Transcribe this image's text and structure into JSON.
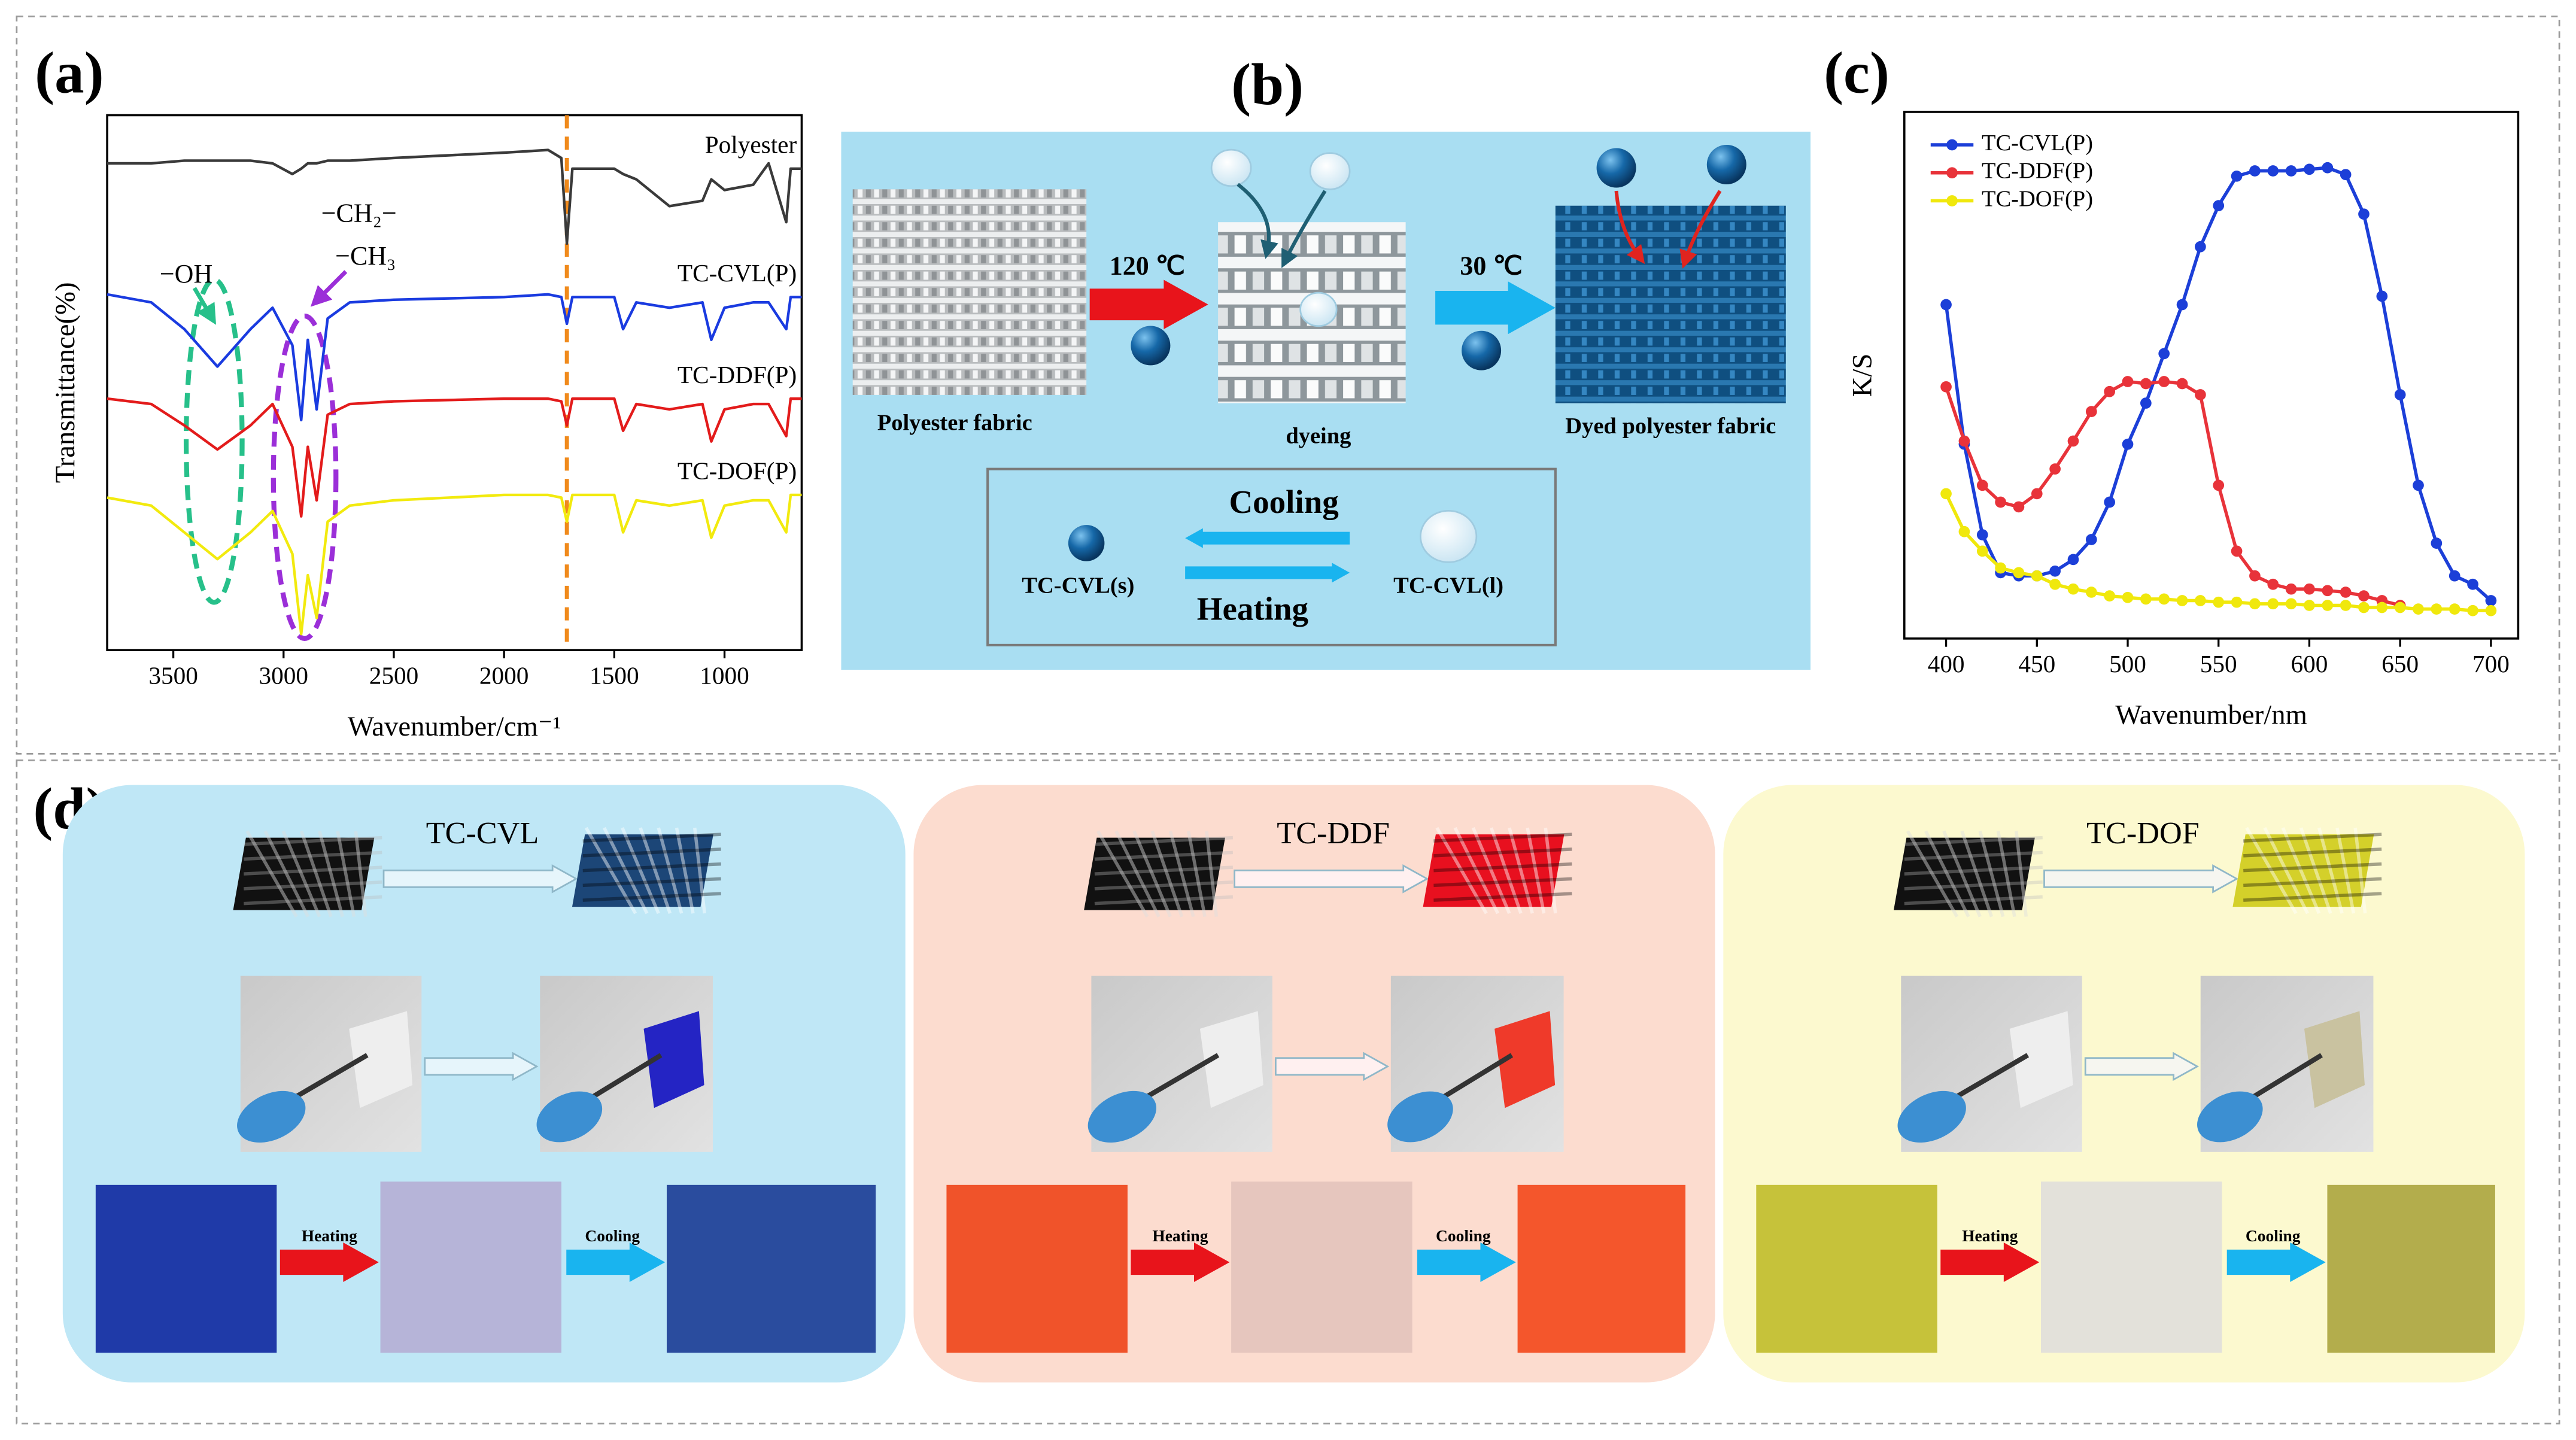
{
  "panel_labels": [
    "(a)",
    "(b)",
    "(c)",
    "(d)"
  ],
  "chart_data": [
    {
      "type": "line",
      "xlabel": "Wavenumber/cm⁻¹",
      "ylabel": "Transmittance(%)",
      "x": [
        3800,
        3600,
        3450,
        3300,
        3150,
        3050,
        2960,
        2920,
        2890,
        2850,
        2800,
        2700,
        2500,
        2000,
        1800,
        1740,
        1715,
        1690,
        1500,
        1460,
        1400,
        1250,
        1100,
        1060,
        1000,
        870,
        800,
        720,
        700,
        650
      ],
      "series": [
        {
          "name": "Polyester",
          "color": "#3a3a3a",
          "values": [
            91,
            91,
            91.5,
            91.5,
            91.5,
            91,
            89,
            90,
            91,
            91,
            91.5,
            91.5,
            92,
            93,
            93.5,
            92,
            76,
            90,
            90,
            89,
            88,
            83,
            84,
            88,
            86,
            87,
            91,
            80,
            90,
            90
          ]
        },
        {
          "name": "TC-CVL(P)",
          "color": "#1a3be0",
          "values": [
            66.5,
            65,
            60,
            53,
            60,
            64,
            57,
            43,
            58,
            45,
            62,
            65,
            65.5,
            66,
            66.5,
            66,
            61,
            66,
            66,
            60,
            65,
            64,
            65,
            58,
            64,
            65,
            65,
            60,
            66,
            66
          ]
        },
        {
          "name": "TC-DDF(P)",
          "color": "#e31b1b",
          "values": [
            47,
            46,
            42,
            37.5,
            42,
            46,
            38,
            25,
            38,
            28,
            44,
            46,
            46.5,
            47,
            47,
            46.5,
            42,
            47,
            47,
            41,
            46,
            45,
            46,
            39,
            45,
            46,
            46,
            40,
            47,
            47
          ]
        },
        {
          "name": "TC-DOF(P)",
          "color": "#f2ea0e",
          "values": [
            28.5,
            27,
            22,
            17,
            22,
            26,
            18,
            3,
            14,
            6,
            24,
            27,
            28,
            29,
            29,
            28.5,
            24,
            29,
            29,
            22,
            28,
            27,
            28,
            21,
            27,
            28,
            28,
            22,
            29,
            29
          ]
        }
      ],
      "xlim": [
        3800,
        650
      ],
      "xticks": [
        3500,
        3000,
        2500,
        2000,
        1500,
        1000
      ],
      "ylim": [
        0,
        100
      ],
      "reference_x": 1715,
      "reference_color": "#f08a1c",
      "legend": "inline",
      "annotations": [
        "−OH",
        "−CH₂−",
        "−CH₃"
      ]
    },
    {
      "type": "line",
      "xlabel": "Wavenumber/nm",
      "ylabel": "K/S",
      "x": [
        400,
        410,
        420,
        430,
        440,
        450,
        460,
        470,
        480,
        490,
        500,
        510,
        520,
        530,
        540,
        550,
        560,
        570,
        580,
        590,
        600,
        610,
        620,
        630,
        640,
        650,
        660,
        670,
        680,
        690,
        700
      ],
      "series": [
        {
          "name": "TC-CVL(P)",
          "color": "#1c3fd8",
          "values": [
            63.4,
            36.9,
            19.7,
            12.5,
            11.9,
            11.9,
            12.8,
            15,
            18.8,
            25.9,
            36.9,
            44.7,
            54.1,
            63.4,
            74.4,
            82.2,
            87.8,
            88.8,
            88.8,
            88.8,
            89.1,
            89.4,
            88.1,
            80.6,
            65,
            46.3,
            29.1,
            18.1,
            11.9,
            10.3,
            7.2
          ]
        },
        {
          "name": "TC-DDF(P)",
          "color": "#e8333a",
          "values": [
            47.8,
            37.5,
            29.1,
            25.9,
            25,
            27.5,
            32.2,
            37.5,
            43.1,
            46.9,
            48.8,
            48.4,
            48.8,
            48.4,
            46.3,
            29.1,
            16.6,
            11.9,
            10.3,
            9.4,
            9.4,
            9.1,
            8.8,
            8.1,
            7.2,
            6.3,
            null,
            null,
            null,
            null,
            null
          ]
        },
        {
          "name": "TC-DOF(P)",
          "color": "#f0e80c",
          "values": [
            27.5,
            20.3,
            16.6,
            13.4,
            12.5,
            11.9,
            10.3,
            9.4,
            8.8,
            8.1,
            7.8,
            7.5,
            7.5,
            7.2,
            7.2,
            6.9,
            6.9,
            6.6,
            6.6,
            6.6,
            6.3,
            6.3,
            6.3,
            5.9,
            5.9,
            5.9,
            5.6,
            5.6,
            5.6,
            5.3,
            5.3
          ]
        }
      ],
      "xlim": [
        377,
        715
      ],
      "xticks": [
        400,
        450,
        500,
        550,
        600,
        650,
        700
      ],
      "ylim": [
        0,
        100
      ],
      "markers": true,
      "legend": "upper left"
    }
  ],
  "diagram_b": {
    "fabric": "Polyester fabric",
    "dyeing_temp": "120 ℃",
    "dyeing": "dyeing",
    "cooling_temp": "30 ℃",
    "dyed": "Dyed polyester fabric",
    "cooling": "Cooling",
    "heating": "Heating",
    "solid": "TC-CVL(s)",
    "liquid": "TC-CVL(l)"
  },
  "panel_d": {
    "columns": [
      {
        "dye": "TC-CVL",
        "heating": "Heating",
        "cooling": "Cooling"
      },
      {
        "dye": "TC-DDF",
        "heating": "Heating",
        "cooling": "Cooling"
      },
      {
        "dye": "TC-DOF",
        "heating": "Heating",
        "cooling": "Cooling"
      }
    ]
  }
}
